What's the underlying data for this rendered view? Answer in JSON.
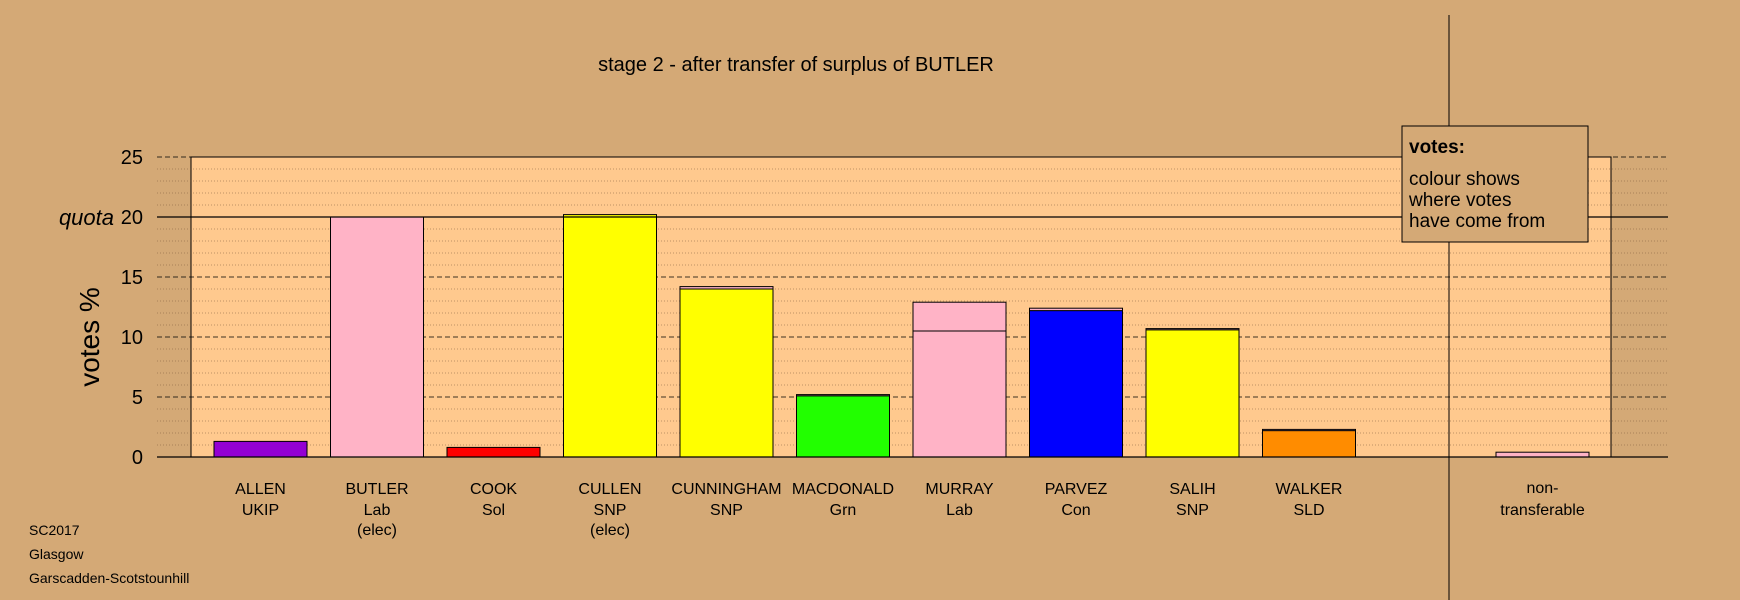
{
  "chart_data": {
    "type": "bar",
    "title": "stage 2 - after transfer of surplus of BUTLER",
    "ylabel": "votes %",
    "ylim": [
      0,
      25
    ],
    "yticks": [
      0,
      5,
      10,
      15,
      20,
      25
    ],
    "quota": 20,
    "quota_label": "quota",
    "legend": {
      "title": "votes:",
      "lines": [
        "colour shows",
        "where votes",
        "have come from"
      ]
    },
    "candidates": [
      {
        "name": "ALLEN",
        "party": "UKIP",
        "note": "",
        "segments": [
          {
            "value": 1.3,
            "color": "#9400D3"
          }
        ]
      },
      {
        "name": "BUTLER",
        "party": "Lab",
        "note": "(elec)",
        "segments": [
          {
            "value": 20.0,
            "color": "#FFB3C6"
          }
        ]
      },
      {
        "name": "COOK",
        "party": "Sol",
        "note": "",
        "segments": [
          {
            "value": 0.8,
            "color": "#FF0000"
          }
        ]
      },
      {
        "name": "CULLEN",
        "party": "SNP",
        "note": "(elec)",
        "segments": [
          {
            "value": 20.2,
            "color": "#FFFF00"
          }
        ]
      },
      {
        "name": "CUNNINGHAM",
        "party": "SNP",
        "note": "",
        "segments": [
          {
            "value": 14.0,
            "color": "#FFFF00"
          },
          {
            "value": 0.2,
            "color": "#FFB3C6"
          }
        ]
      },
      {
        "name": "MACDONALD",
        "party": "Grn",
        "note": "",
        "segments": [
          {
            "value": 5.1,
            "color": "#22FF00"
          },
          {
            "value": 0.1,
            "color": "#FFB3C6"
          }
        ]
      },
      {
        "name": "MURRAY",
        "party": "Lab",
        "note": "",
        "segments": [
          {
            "value": 10.5,
            "color": "#FFB3C6"
          },
          {
            "value": 2.4,
            "color": "#FFB3C6"
          }
        ]
      },
      {
        "name": "PARVEZ",
        "party": "Con",
        "note": "",
        "segments": [
          {
            "value": 12.2,
            "color": "#0000FF"
          },
          {
            "value": 0.2,
            "color": "#FFB3C6"
          }
        ]
      },
      {
        "name": "SALIH",
        "party": "SNP",
        "note": "",
        "segments": [
          {
            "value": 10.6,
            "color": "#FFFF00"
          },
          {
            "value": 0.1,
            "color": "#FFB3C6"
          }
        ]
      },
      {
        "name": "WALKER",
        "party": "SLD",
        "note": "",
        "segments": [
          {
            "value": 2.2,
            "color": "#FF8C00"
          },
          {
            "value": 0.1,
            "color": "#FFB3C6"
          }
        ]
      }
    ],
    "nontransferable": {
      "label_line1": "non-",
      "label_line2": "transferable",
      "segments": [
        {
          "value": 0.4,
          "color": "#FFB3C6"
        }
      ]
    },
    "footer": [
      "SC2017",
      "Glasgow",
      "Garscadden-Scotstounhill"
    ]
  }
}
